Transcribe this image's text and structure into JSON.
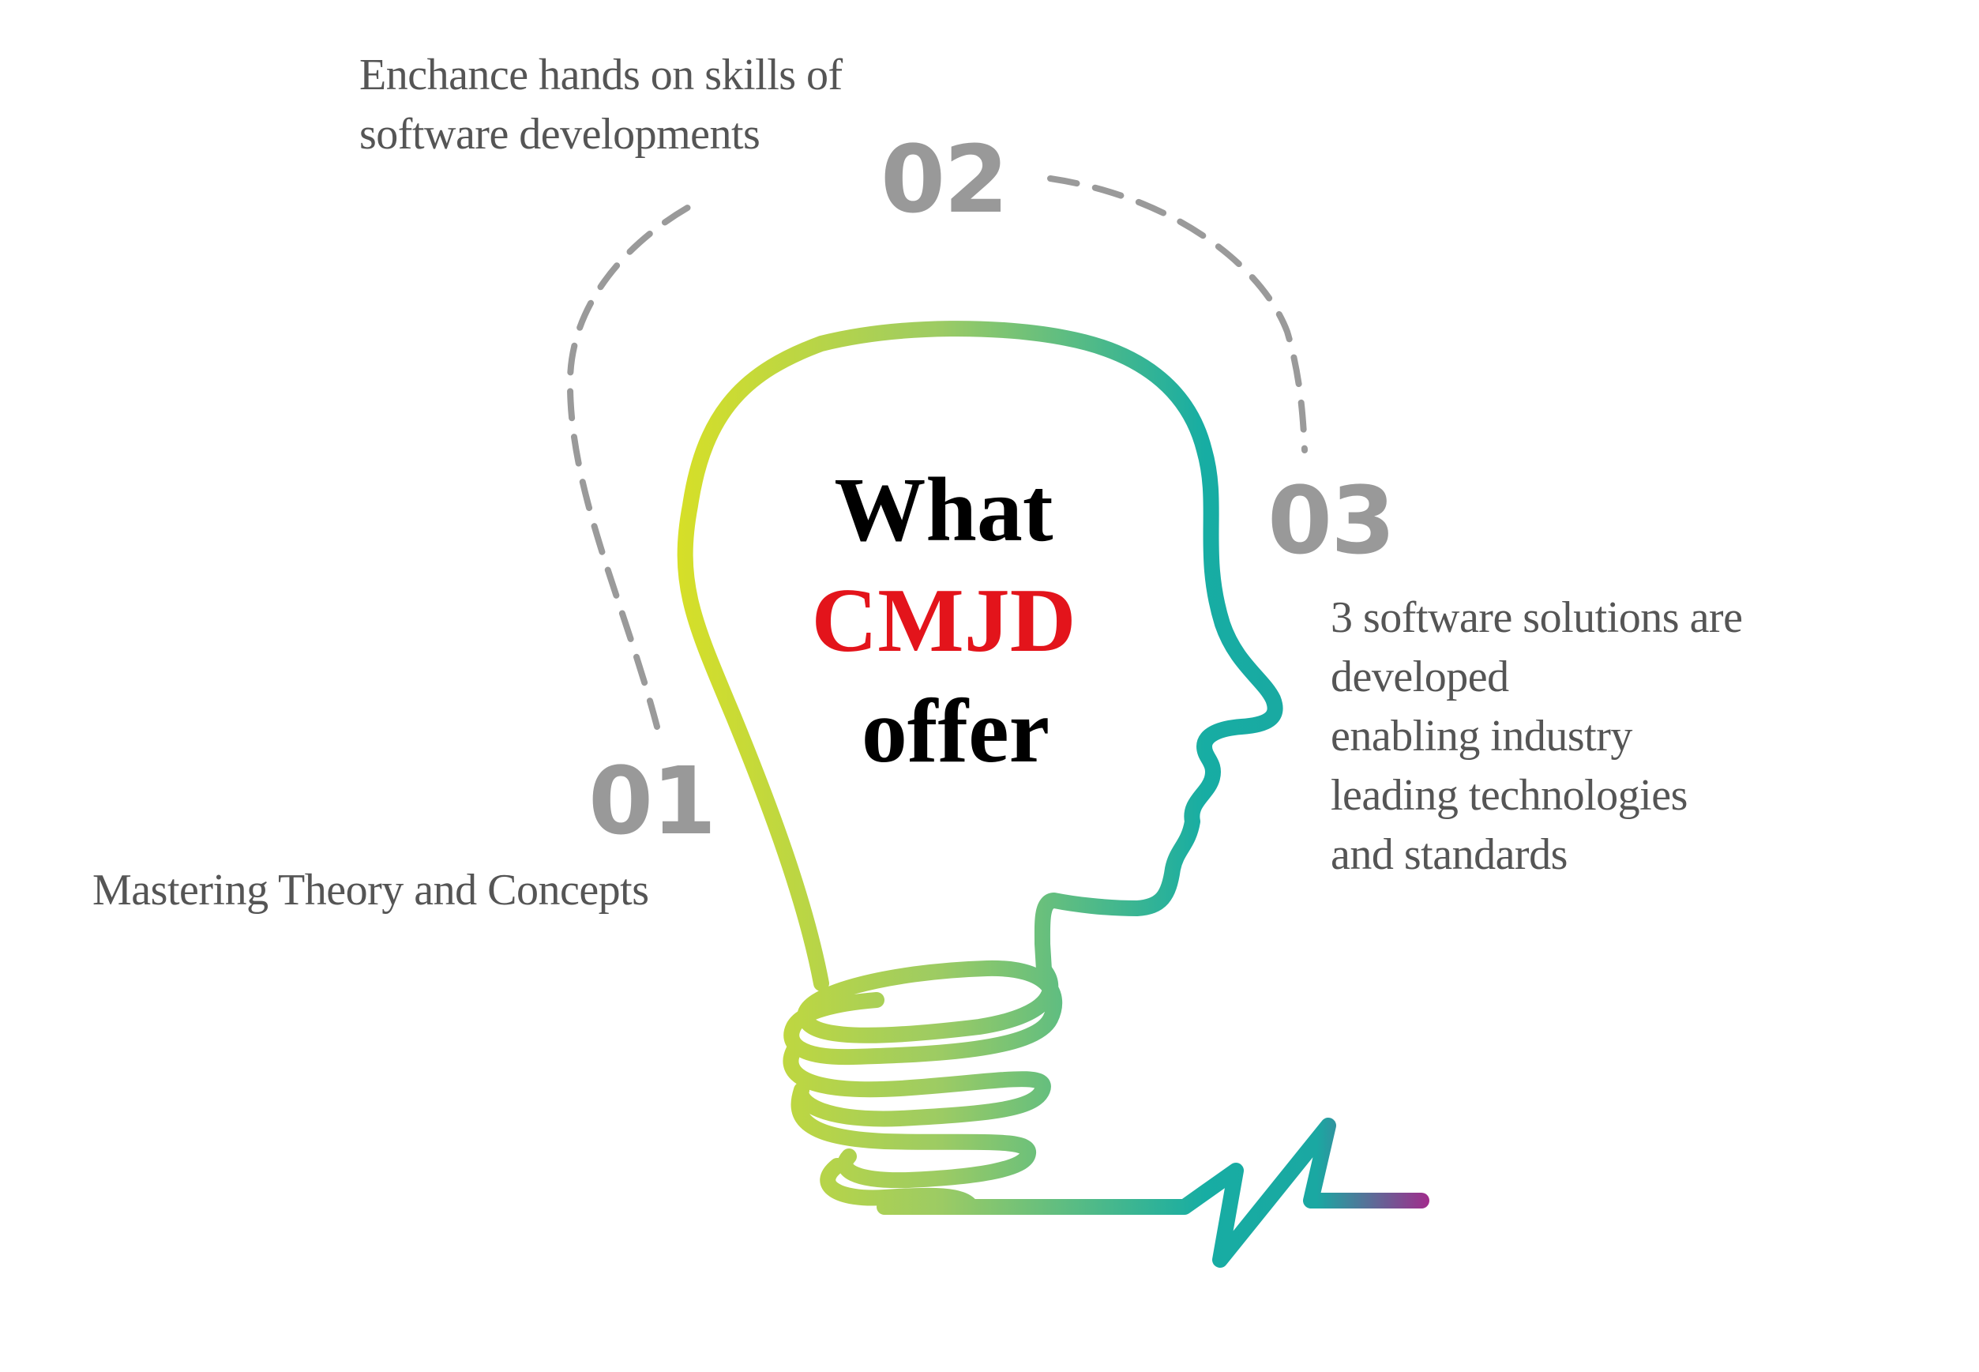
{
  "colors": {
    "number": "#999999",
    "caption": "#555555",
    "dash": "#9a9a9a",
    "title_text": "#000000",
    "title_accent": "#e3141b",
    "gradient": [
      "#d6df28",
      "#9ccb64",
      "#17ada3",
      "#a12c8c"
    ]
  },
  "title": {
    "line1": "What",
    "line2": "CMJD",
    "line3": "offer"
  },
  "items": [
    {
      "number": "01",
      "caption": "Mastering Theory and Concepts",
      "icon": "dashed-arc"
    },
    {
      "number": "02",
      "caption_lines": [
        "Enchance hands on skills of",
        "software developments"
      ],
      "icon": "dashed-arc"
    },
    {
      "number": "03",
      "caption_lines": [
        "3 software solutions are",
        "developed",
        "enabling industry",
        "leading technologies",
        "and standards"
      ]
    }
  ],
  "graphic": {
    "shape": "head-shaped-lightbulb",
    "tail": "zigzag-power-line"
  }
}
